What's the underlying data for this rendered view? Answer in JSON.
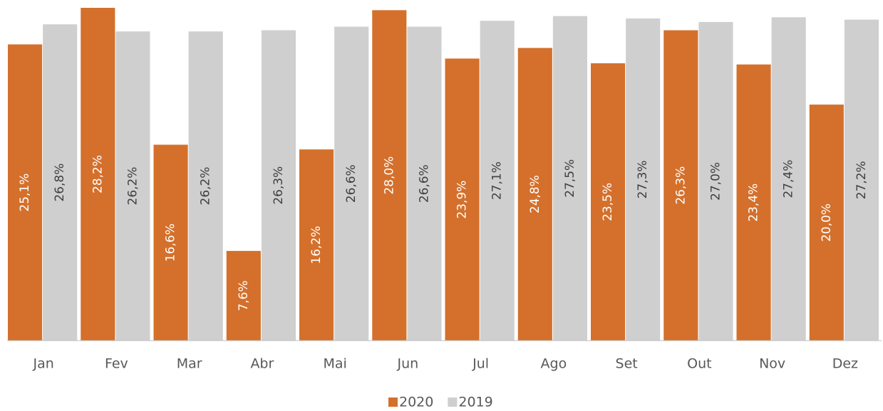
{
  "chart_data": {
    "type": "bar",
    "categories": [
      "Jan",
      "Fev",
      "Mar",
      "Abr",
      "Mai",
      "Jun",
      "Jul",
      "Ago",
      "Set",
      "Out",
      "Nov",
      "Dez"
    ],
    "series": [
      {
        "name": "2020",
        "color": "#d4702b",
        "values": [
          25.1,
          28.2,
          16.6,
          7.6,
          16.2,
          28.0,
          23.9,
          24.8,
          23.5,
          26.3,
          23.4,
          20.0
        ],
        "value_labels": [
          "25,1%",
          "28,2%",
          "16,6%",
          "7,6%",
          "16,2%",
          "28,0%",
          "23,9%",
          "24,8%",
          "23,5%",
          "26,3%",
          "23,4%",
          "20,0%"
        ]
      },
      {
        "name": "2019",
        "color": "#d0cfd0",
        "values": [
          26.8,
          26.2,
          26.2,
          26.3,
          26.6,
          26.6,
          27.1,
          27.5,
          27.3,
          27.0,
          27.4,
          27.2
        ],
        "value_labels": [
          "26,8%",
          "26,2%",
          "26,2%",
          "26,3%",
          "26,6%",
          "26,6%",
          "27,1%",
          "27,5%",
          "27,3%",
          "27,0%",
          "27,4%",
          "27,2%"
        ]
      }
    ]
  }
}
